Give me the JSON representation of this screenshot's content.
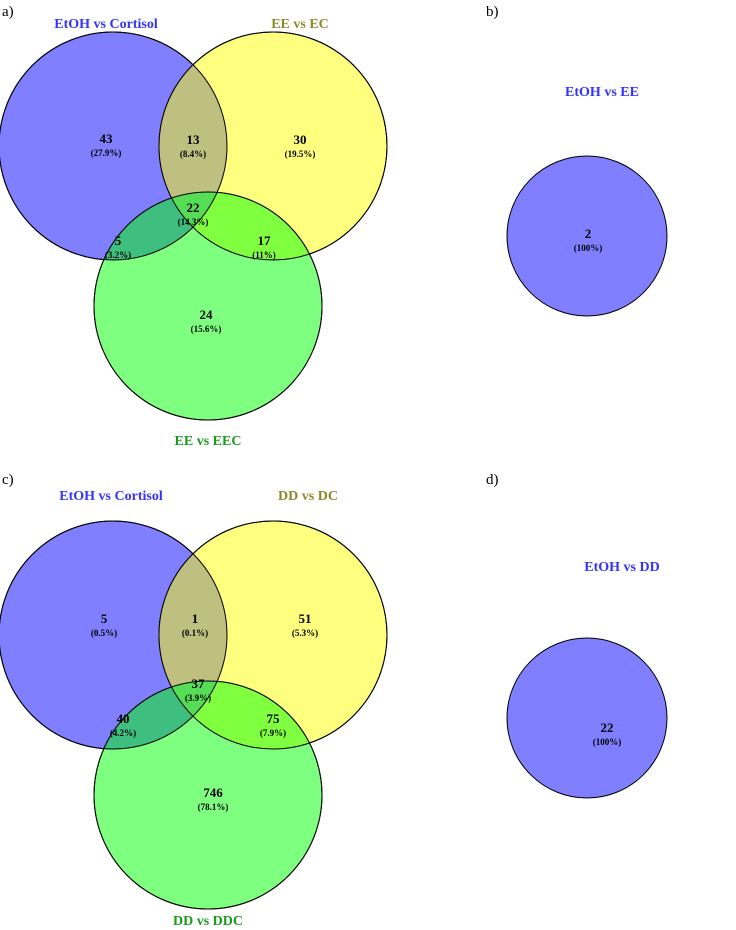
{
  "colors": {
    "blue_set": "#7f7fff",
    "yellow_set": "#ffff7f",
    "green_set": "#7fff7f",
    "label_blue": "#3333ff",
    "label_olive": "#8a8a2a",
    "label_green": "#1a991a"
  },
  "panels": {
    "a": {
      "letter": "a)",
      "sets": {
        "A": "EtOH vs Cortisol",
        "B": "EE vs EC",
        "C": "EE vs EEC"
      },
      "regions": {
        "A_only": {
          "count": "43",
          "pct": "(27.9%)"
        },
        "AB": {
          "count": "13",
          "pct": "(8.4%)"
        },
        "B_only": {
          "count": "30",
          "pct": "(19.5%)"
        },
        "ABC": {
          "count": "22",
          "pct": "(14.3%)"
        },
        "AC": {
          "count": "5",
          "pct": "(3.2%)"
        },
        "BC": {
          "count": "17",
          "pct": "(11%)"
        },
        "C_only": {
          "count": "24",
          "pct": "(15.6%)"
        }
      }
    },
    "b": {
      "letter": "b)",
      "set": "EtOH vs EE",
      "region": {
        "count": "2",
        "pct": "(100%)"
      }
    },
    "c": {
      "letter": "c)",
      "sets": {
        "A": "EtOH vs Cortisol",
        "B": "DD vs DC",
        "C": "DD vs DDC"
      },
      "regions": {
        "A_only": {
          "count": "5",
          "pct": "(0.5%)"
        },
        "AB": {
          "count": "1",
          "pct": "(0.1%)"
        },
        "B_only": {
          "count": "51",
          "pct": "(5.3%)"
        },
        "ABC": {
          "count": "37",
          "pct": "(3.9%)"
        },
        "AC": {
          "count": "40",
          "pct": "(4.2%)"
        },
        "BC": {
          "count": "75",
          "pct": "(7.9%)"
        },
        "C_only": {
          "count": "746",
          "pct": "(78.1%)"
        }
      }
    },
    "d": {
      "letter": "d)",
      "set": "EtOH vs DD",
      "region": {
        "count": "22",
        "pct": "(100%)"
      }
    }
  }
}
